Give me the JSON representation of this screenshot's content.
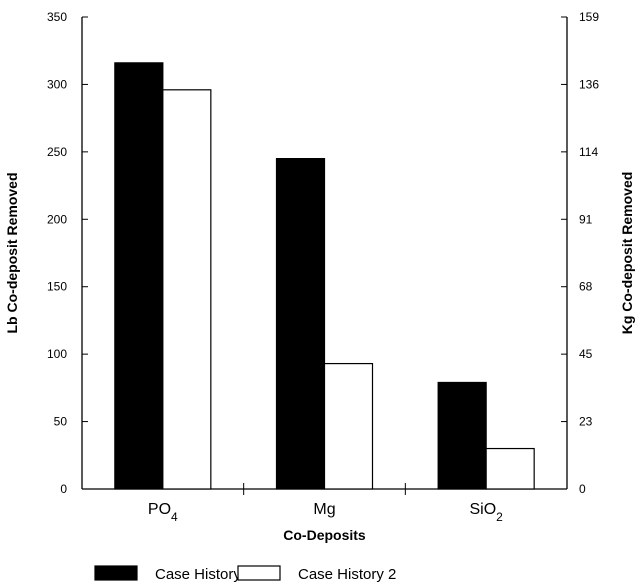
{
  "chart_data": {
    "type": "bar",
    "categories": [
      {
        "base": "PO",
        "sub": "4"
      },
      {
        "base": "Mg",
        "sub": ""
      },
      {
        "base": "SiO",
        "sub": "2"
      }
    ],
    "series": [
      {
        "name": "Case History",
        "values": [
          316,
          245,
          79
        ],
        "color": "#000000"
      },
      {
        "name": "Case History 2",
        "values": [
          296,
          93,
          30
        ],
        "color": "#ffffff"
      }
    ],
    "xlabel": "Co-Deposits",
    "ylabel": "Lb Co-deposit Removed",
    "y2label": "Kg Co-deposit Removed",
    "ylim": [
      0,
      350
    ],
    "yticks": [
      "0",
      "50",
      "100",
      "150",
      "200",
      "250",
      "300",
      "350"
    ],
    "y2ticks": [
      "0",
      "23",
      "45",
      "68",
      "91",
      "114",
      "136",
      "159"
    ],
    "grid": false,
    "legend_position": "bottom-left"
  }
}
